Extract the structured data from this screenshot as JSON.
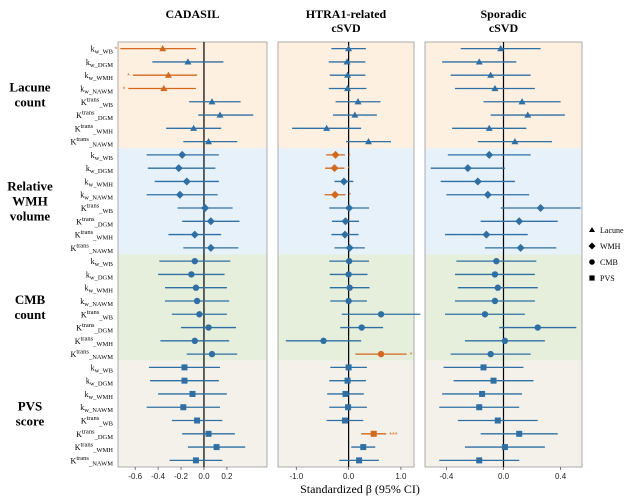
{
  "chart_data": {
    "type": "forest",
    "xlabel": "Standardized β (95% CI)",
    "panels": [
      {
        "key": "cadasil",
        "title_lines": [
          "CADASIL"
        ],
        "xlim": [
          -0.75,
          0.55
        ],
        "ticks": [
          -0.6,
          -0.4,
          -0.2,
          0.0,
          0.2
        ]
      },
      {
        "key": "htra1",
        "title_lines": [
          "HTRA1-related",
          "cSVD"
        ],
        "xlim": [
          -1.35,
          1.25
        ],
        "ticks": [
          -1.0,
          0.0,
          1.0
        ],
        "tick_labels": [
          "-1.0",
          "0.0",
          "1.0"
        ]
      },
      {
        "key": "sporadic",
        "title_lines": [
          "Sporadic",
          "cSVD"
        ],
        "xlim": [
          -0.55,
          0.55
        ],
        "ticks": [
          -0.4,
          0.0,
          0.4
        ]
      }
    ],
    "groups": [
      {
        "label_lines": [
          "Lacune",
          "count"
        ],
        "shape": "triangle",
        "bg": "#fdf0e0"
      },
      {
        "label_lines": [
          "Relative",
          "WMH",
          "volume"
        ],
        "shape": "diamond",
        "bg": "#e6f1fa"
      },
      {
        "label_lines": [
          "CMB",
          "count"
        ],
        "shape": "circle",
        "bg": "#e6efdc"
      },
      {
        "label_lines": [
          "PVS",
          "score"
        ],
        "shape": "square",
        "bg": "#f4f1ea"
      }
    ],
    "rows": [
      {
        "main": "k",
        "sup": "",
        "sub": "w_WB"
      },
      {
        "main": "k",
        "sup": "",
        "sub": "w_DGM"
      },
      {
        "main": "k",
        "sup": "",
        "sub": "w_WMH"
      },
      {
        "main": "k",
        "sup": "",
        "sub": "w_NAWM"
      },
      {
        "main": "K",
        "sup": "trans",
        "sub": "_WB"
      },
      {
        "main": "K",
        "sup": "trans",
        "sub": "_DGM"
      },
      {
        "main": "K",
        "sup": "trans",
        "sub": "_WMH"
      },
      {
        "main": "K",
        "sup": "trans",
        "sub": "_NAWM"
      }
    ],
    "series": {
      "cadasil": [
        [
          [
            -0.36,
            -0.73,
            -0.07,
            "*"
          ],
          [
            -0.14,
            -0.45,
            0.17,
            ""
          ],
          [
            -0.31,
            -0.62,
            -0.06,
            "*"
          ],
          [
            -0.35,
            -0.66,
            -0.07,
            "*"
          ],
          [
            0.07,
            -0.13,
            0.32,
            ""
          ],
          [
            0.14,
            -0.05,
            0.43,
            ""
          ],
          [
            -0.09,
            -0.33,
            0.15,
            ""
          ],
          [
            0.04,
            -0.18,
            0.29,
            ""
          ]
        ],
        [
          [
            -0.19,
            -0.5,
            0.13,
            ""
          ],
          [
            -0.22,
            -0.49,
            0.1,
            ""
          ],
          [
            -0.15,
            -0.43,
            0.13,
            ""
          ],
          [
            -0.21,
            -0.5,
            0.12,
            ""
          ],
          [
            0.01,
            -0.23,
            0.25,
            ""
          ],
          [
            0.06,
            -0.19,
            0.31,
            ""
          ],
          [
            -0.08,
            -0.31,
            0.15,
            ""
          ],
          [
            0.06,
            -0.18,
            0.3,
            ""
          ]
        ],
        [
          [
            -0.08,
            -0.39,
            0.23,
            ""
          ],
          [
            -0.11,
            -0.4,
            0.18,
            ""
          ],
          [
            -0.07,
            -0.34,
            0.2,
            ""
          ],
          [
            -0.06,
            -0.34,
            0.22,
            ""
          ],
          [
            -0.04,
            -0.28,
            0.2,
            ""
          ],
          [
            0.04,
            -0.2,
            0.28,
            ""
          ],
          [
            -0.08,
            -0.38,
            0.22,
            ""
          ],
          [
            0.07,
            -0.15,
            0.29,
            ""
          ]
        ],
        [
          [
            -0.17,
            -0.48,
            0.14,
            ""
          ],
          [
            -0.17,
            -0.47,
            0.13,
            ""
          ],
          [
            -0.1,
            -0.4,
            0.2,
            ""
          ],
          [
            -0.18,
            -0.5,
            0.14,
            ""
          ],
          [
            -0.06,
            -0.28,
            0.16,
            ""
          ],
          [
            0.04,
            -0.19,
            0.27,
            ""
          ],
          [
            0.11,
            -0.14,
            0.36,
            ""
          ],
          [
            -0.07,
            -0.3,
            0.16,
            ""
          ]
        ]
      ],
      "htra1": [
        [
          [
            0.0,
            -0.33,
            0.33,
            ""
          ],
          [
            -0.03,
            -0.38,
            0.32,
            ""
          ],
          [
            -0.02,
            -0.36,
            0.32,
            ""
          ],
          [
            -0.02,
            -0.38,
            0.34,
            ""
          ],
          [
            0.18,
            -0.25,
            0.61,
            ""
          ],
          [
            0.12,
            -0.3,
            0.54,
            ""
          ],
          [
            -0.42,
            -1.08,
            0.24,
            ""
          ],
          [
            0.38,
            -0.05,
            0.81,
            ""
          ]
        ],
        [
          [
            -0.25,
            -0.43,
            -0.07,
            "*"
          ],
          [
            -0.27,
            -0.45,
            -0.08,
            "*"
          ],
          [
            -0.09,
            -0.27,
            0.09,
            ""
          ],
          [
            -0.26,
            -0.46,
            -0.06,
            "*"
          ],
          [
            0.01,
            -0.37,
            0.39,
            ""
          ],
          [
            -0.06,
            -0.32,
            0.2,
            ""
          ],
          [
            -0.07,
            -0.33,
            0.19,
            ""
          ],
          [
            0.02,
            -0.27,
            0.31,
            ""
          ]
        ],
        [
          [
            0.01,
            -0.37,
            0.39,
            ""
          ],
          [
            0.0,
            -0.36,
            0.36,
            ""
          ],
          [
            0.02,
            -0.36,
            0.4,
            ""
          ],
          [
            0.0,
            -0.35,
            0.35,
            ""
          ],
          [
            0.62,
            -0.13,
            1.37,
            ""
          ],
          [
            0.25,
            -0.16,
            0.66,
            ""
          ],
          [
            -0.48,
            -1.2,
            0.24,
            ""
          ],
          [
            0.62,
            0.13,
            1.11,
            "*"
          ]
        ],
        [
          [
            0.0,
            -0.35,
            0.35,
            ""
          ],
          [
            -0.02,
            -0.37,
            0.33,
            ""
          ],
          [
            -0.06,
            -0.41,
            0.29,
            ""
          ],
          [
            -0.01,
            -0.37,
            0.35,
            ""
          ],
          [
            -0.07,
            -0.42,
            0.28,
            ""
          ],
          [
            0.48,
            0.24,
            0.72,
            "***"
          ],
          [
            0.28,
            0.05,
            0.51,
            ""
          ],
          [
            0.2,
            -0.18,
            0.58,
            ""
          ]
        ]
      ],
      "sporadic": [
        [
          [
            -0.02,
            -0.3,
            0.26,
            ""
          ],
          [
            -0.17,
            -0.43,
            0.09,
            ""
          ],
          [
            -0.09,
            -0.37,
            0.19,
            ""
          ],
          [
            -0.06,
            -0.34,
            0.22,
            ""
          ],
          [
            0.13,
            -0.14,
            0.4,
            ""
          ],
          [
            0.17,
            -0.09,
            0.43,
            ""
          ],
          [
            -0.1,
            -0.36,
            0.16,
            ""
          ],
          [
            0.08,
            -0.18,
            0.34,
            ""
          ]
        ],
        [
          [
            -0.1,
            -0.39,
            0.19,
            ""
          ],
          [
            -0.25,
            -0.51,
            0.01,
            ""
          ],
          [
            -0.18,
            -0.44,
            0.08,
            ""
          ],
          [
            -0.11,
            -0.4,
            0.18,
            ""
          ],
          [
            0.26,
            -0.02,
            0.54,
            ""
          ],
          [
            0.11,
            -0.16,
            0.38,
            ""
          ],
          [
            -0.12,
            -0.41,
            0.17,
            ""
          ],
          [
            0.12,
            -0.13,
            0.37,
            ""
          ]
        ],
        [
          [
            -0.05,
            -0.33,
            0.23,
            ""
          ],
          [
            -0.06,
            -0.34,
            0.22,
            ""
          ],
          [
            -0.04,
            -0.32,
            0.24,
            ""
          ],
          [
            -0.06,
            -0.34,
            0.22,
            ""
          ],
          [
            -0.13,
            -0.41,
            0.15,
            ""
          ],
          [
            0.24,
            -0.03,
            0.51,
            ""
          ],
          [
            0.01,
            -0.27,
            0.29,
            ""
          ],
          [
            -0.09,
            -0.37,
            0.19,
            ""
          ]
        ],
        [
          [
            -0.14,
            -0.42,
            0.14,
            ""
          ],
          [
            -0.07,
            -0.35,
            0.21,
            ""
          ],
          [
            -0.15,
            -0.43,
            0.13,
            ""
          ],
          [
            -0.17,
            -0.45,
            0.11,
            ""
          ],
          [
            -0.04,
            -0.32,
            0.24,
            ""
          ],
          [
            0.11,
            -0.16,
            0.38,
            ""
          ],
          [
            0.01,
            -0.27,
            0.29,
            ""
          ],
          [
            -0.17,
            -0.45,
            0.11,
            ""
          ]
        ]
      ]
    },
    "legend": [
      {
        "shape": "triangle",
        "label": "Lacune"
      },
      {
        "shape": "diamond",
        "label": "WMH"
      },
      {
        "shape": "circle",
        "label": "CMB"
      },
      {
        "shape": "square",
        "label": "PVS"
      }
    ],
    "colors": {
      "normal": "#2f6fa3",
      "significant": "#d2691e"
    }
  }
}
